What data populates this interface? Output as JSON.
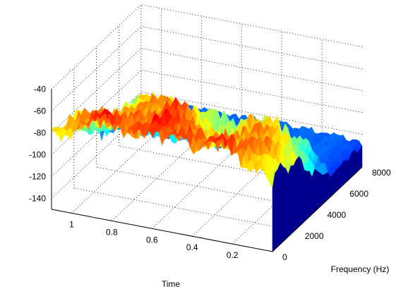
{
  "chart_data": {
    "type": "surface",
    "title": "",
    "xlabel": "Time",
    "ylabel": "Frequency (Hz)",
    "zlabel": "",
    "time_ticks": [
      "1",
      "0.8",
      "0.6",
      "0.4",
      "0.2"
    ],
    "time_tick_values": [
      1.0,
      0.8,
      0.6,
      0.4,
      0.2
    ],
    "freq_ticks": [
      "0",
      "2000",
      "4000",
      "6000",
      "8000"
    ],
    "freq_tick_values": [
      0,
      2000,
      4000,
      6000,
      8000
    ],
    "z_ticks": [
      "-40",
      "-60",
      "-80",
      "-100",
      "-120",
      "-140"
    ],
    "z_tick_values": [
      -40,
      -60,
      -80,
      -100,
      -120,
      -140
    ],
    "time_range": [
      0,
      1.1
    ],
    "freq_range": [
      0,
      8000
    ],
    "z_range": [
      -150,
      -40
    ],
    "grid": true,
    "colormap": "jet",
    "colormap_range": [
      -150,
      -40
    ],
    "ridge_profile_db": {
      "time": [
        0.0,
        0.1,
        0.2,
        0.3,
        0.4,
        0.5,
        0.6,
        0.7,
        0.8,
        0.9,
        1.0,
        1.1
      ],
      "low_freq_peak_db": [
        -85,
        -70,
        -60,
        -62,
        -70,
        -65,
        -55,
        -62,
        -58,
        -65,
        -75,
        -85
      ],
      "high_freq_level_db": [
        -130,
        -125,
        -125,
        -125,
        -125,
        -125,
        -125,
        -125,
        -125,
        -125,
        -125,
        -125
      ]
    },
    "signal_cutoff_hz": 5000
  }
}
